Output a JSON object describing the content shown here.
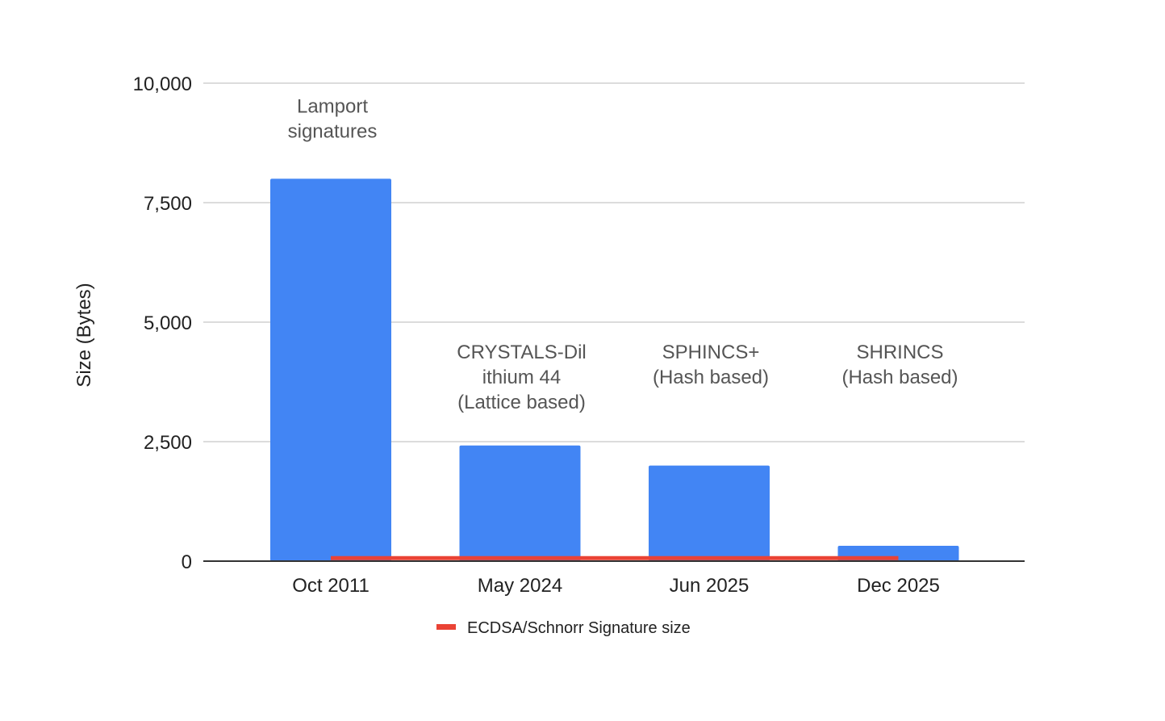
{
  "chart_data": {
    "type": "bar",
    "categories": [
      "Oct 2011",
      "May 2024",
      "Jun 2025",
      "Dec 2025"
    ],
    "series": [
      {
        "values": [
          8000,
          2420,
          2000,
          320
        ],
        "color": "#4285f4",
        "annotations": [
          [
            "Lamport",
            "signatures"
          ],
          [
            "CRYSTALS-Dil",
            "ithium 44",
            "(Lattice based)"
          ],
          [
            "SPHINCS+",
            "(Hash based)"
          ],
          [
            "SHRINCS",
            "(Hash based)"
          ]
        ]
      },
      {
        "name": "ECDSA/Schnorr Signature size",
        "type": "line",
        "values": [
          64,
          64,
          64,
          64
        ],
        "color": "#ea4335"
      }
    ],
    "ylabel": "Size (Bytes)",
    "xlabel": "",
    "ylim": [
      0,
      10000
    ],
    "yticks": [
      0,
      2500,
      5000,
      7500,
      10000
    ],
    "ytick_labels": [
      "0",
      "2,500",
      "5,000",
      "7,500",
      "10,000"
    ],
    "grid": true,
    "legend_position": "bottom"
  }
}
